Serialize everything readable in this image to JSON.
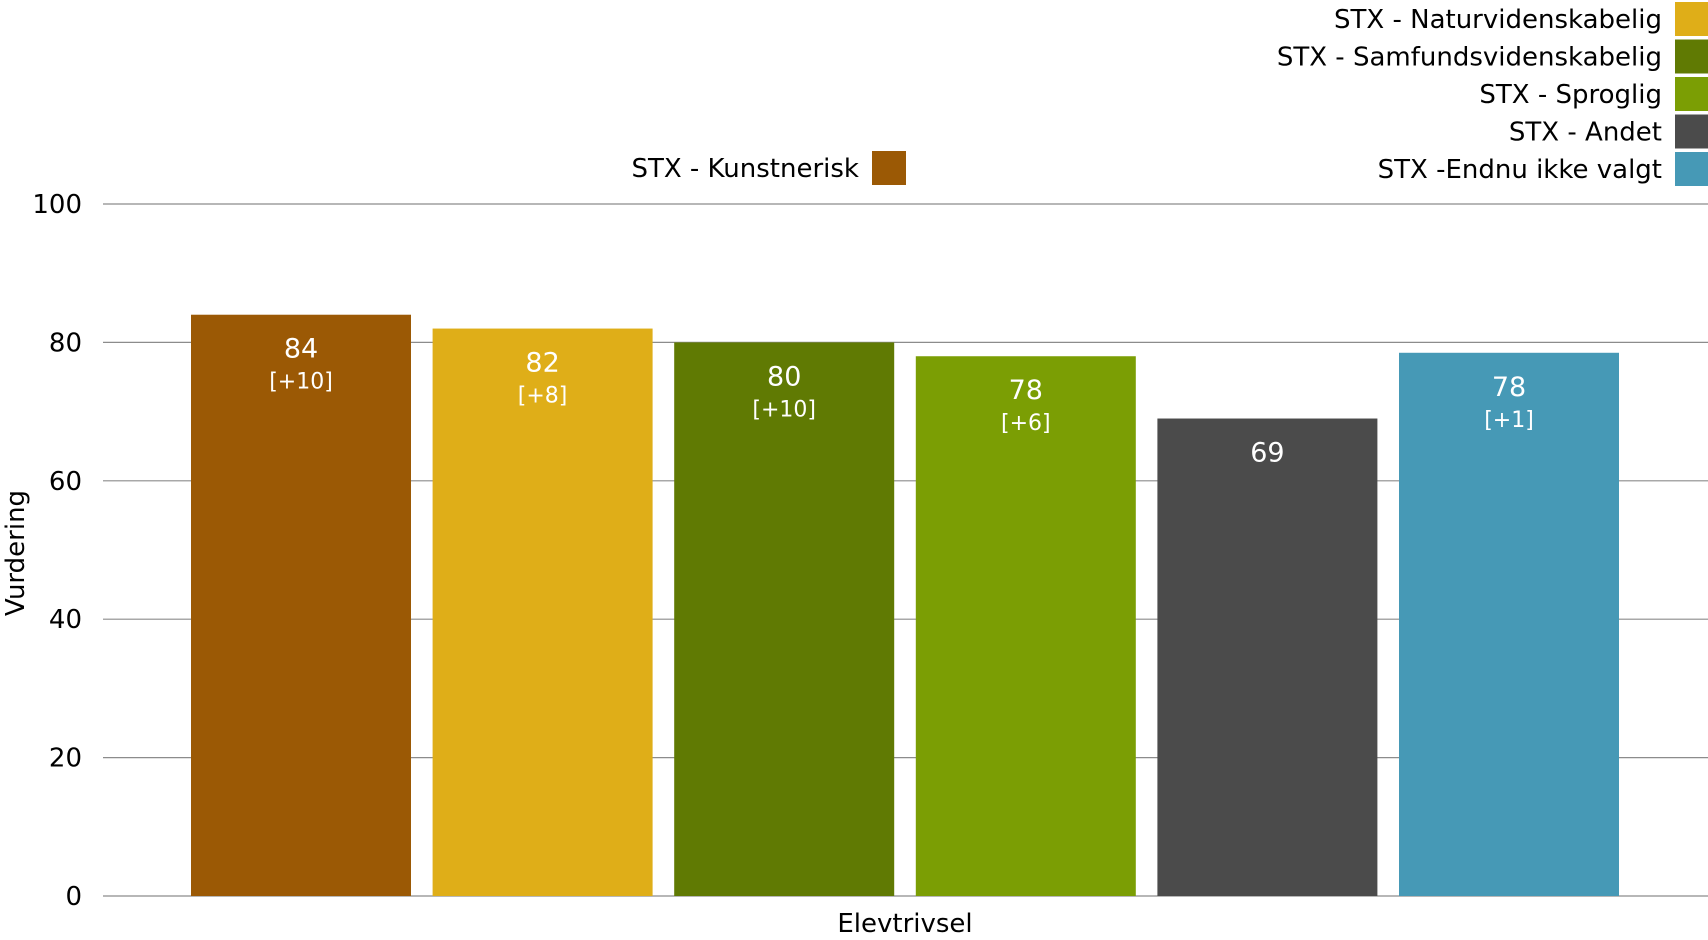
{
  "chart_data": {
    "type": "bar",
    "title": "",
    "xlabel": "Elevtrivsel",
    "ylabel": "Vurdering",
    "ylim": [
      0,
      100
    ],
    "yticks": [
      0,
      20,
      40,
      60,
      80,
      100
    ],
    "grid": true,
    "legend_position": "top",
    "categories": [
      "Elevtrivsel"
    ],
    "series": [
      {
        "name": "STX - Kunstnerisk",
        "value": 84,
        "display": "84",
        "change": "[+10]",
        "color": "#9b5905"
      },
      {
        "name": "STX - Naturvidenskabelig",
        "value": 82,
        "display": "82",
        "change": "[+8]",
        "color": "#dfae18"
      },
      {
        "name": "STX - Samfundsvidenskabelig",
        "value": 80,
        "display": "80",
        "change": "[+10]",
        "color": "#607a03"
      },
      {
        "name": "STX - Sproglig",
        "value": 78,
        "display": "78",
        "change": "[+6]",
        "color": "#7b9e04"
      },
      {
        "name": "STX - Andet",
        "value": 69,
        "display": "69",
        "change": "",
        "color": "#4b4b4b"
      },
      {
        "name": "STX -Endnu ikke valgt",
        "value": 78.5,
        "display": "78",
        "change": "[+1]",
        "color": "#4699b6"
      }
    ]
  }
}
